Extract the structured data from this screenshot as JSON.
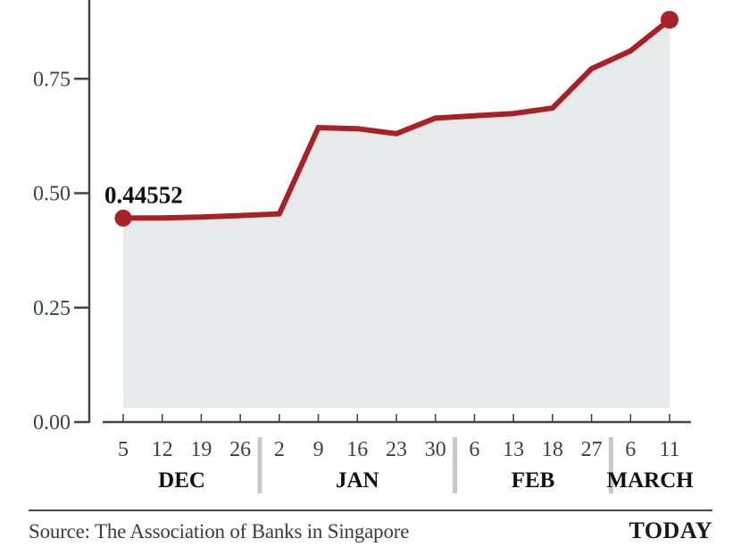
{
  "chart_data": {
    "type": "area",
    "title": "",
    "xlabel": "",
    "ylabel": "",
    "grid": "off",
    "legend": "none",
    "ylim_visible": [
      0,
      0.92
    ],
    "y_ticks": [
      {
        "label": "0.00",
        "value": 0.0
      },
      {
        "label": "0.25",
        "value": 0.25
      },
      {
        "label": "0.50",
        "value": 0.5
      },
      {
        "label": "0.75",
        "value": 0.75
      }
    ],
    "month_groups": [
      {
        "label": "DEC",
        "days": [
          "5",
          "12",
          "19",
          "26"
        ]
      },
      {
        "label": "JAN",
        "days": [
          "2",
          "9",
          "16",
          "23",
          "30"
        ]
      },
      {
        "label": "FEB",
        "days": [
          "6",
          "13",
          "18",
          "27"
        ]
      },
      {
        "label": "MARCH",
        "days": [
          "6",
          "11"
        ]
      }
    ],
    "values": [
      0.44552,
      0.446,
      0.448,
      0.451,
      0.455,
      0.643,
      0.641,
      0.63,
      0.664,
      0.669,
      0.674,
      0.686,
      0.772,
      0.811,
      0.879
    ],
    "annotation": {
      "text": "0.44552",
      "point_index": 0
    },
    "markers": {
      "start": true,
      "end": true
    },
    "colors": {
      "line": "#a82127",
      "fill": "#e7eaea",
      "axis": "#454545",
      "tick_text": "#39424a",
      "label_text": "#101010",
      "separator": "#c9c9c9"
    }
  },
  "footer": {
    "source": "Source: The Association of Banks in Singapore",
    "brand": "TODAY"
  }
}
